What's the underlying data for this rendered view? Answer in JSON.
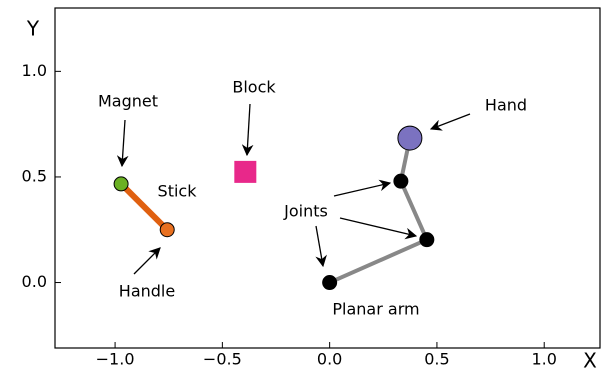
{
  "chart_data": {
    "type": "scatter",
    "xlabel": "X",
    "ylabel": "Y",
    "xlim": [
      -1.28,
      1.26
    ],
    "ylim": [
      -0.31,
      1.3
    ],
    "xticks": [
      {
        "value": -1.0,
        "label": "−1.0"
      },
      {
        "value": -0.5,
        "label": "−0.5"
      },
      {
        "value": 0.0,
        "label": "0.0"
      },
      0.5,
      {
        "value": 1.0,
        "label": "1.0"
      }
    ],
    "yticks": [
      {
        "value": 0.0,
        "label": "0.0"
      },
      0.5,
      {
        "value": 1.0,
        "label": "1.0"
      }
    ],
    "series": [
      {
        "name": "Planar arm",
        "color": "#888888",
        "marker_colors": [
          "#000000",
          "#000000",
          "#000000",
          "#7b72c0"
        ],
        "x": [
          0.0,
          0.453,
          0.332,
          0.374
        ],
        "y": [
          0.0,
          0.203,
          0.48,
          0.684
        ]
      },
      {
        "name": "Stick",
        "color": "#e06010",
        "marker_colors": [
          "#6ab023",
          "#e87020"
        ],
        "x": [
          -0.972,
          -0.757
        ],
        "y": [
          0.467,
          0.25
        ]
      },
      {
        "name": "Block",
        "color": "#e8288a",
        "x": [
          -0.393
        ],
        "y": [
          0.524
        ]
      }
    ],
    "annotations": [
      "Magnet",
      "Handle",
      "Joints",
      "Hand"
    ]
  }
}
